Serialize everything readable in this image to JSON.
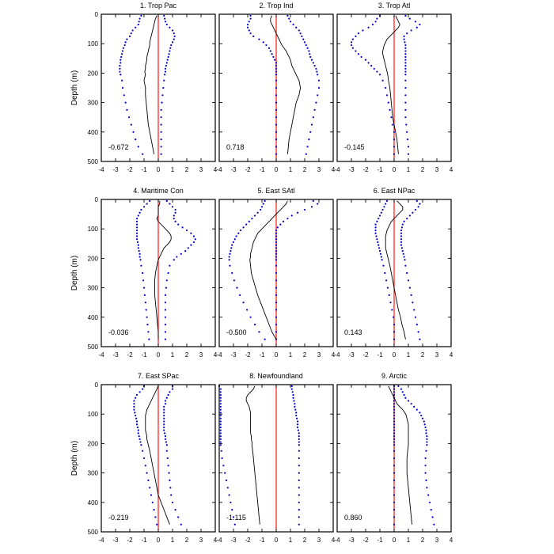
{
  "chart_data": {
    "type": "line",
    "description_axes": "shared",
    "xlim": [
      -4,
      4
    ],
    "ylim": [
      0,
      500
    ],
    "y_inverted": true,
    "ylabel": "Depth (m)",
    "x_ticks": [
      "-4",
      "-3",
      "-2",
      "-1",
      "0",
      "1",
      "2",
      "3",
      "4"
    ],
    "y_ticks": [
      "0",
      "100",
      "200",
      "300",
      "400",
      "500"
    ],
    "colors": {
      "zero_line": "#ff0000",
      "mean_line": "#000000",
      "bounds_dots": "#0000cc"
    },
    "depths": [
      5,
      15,
      25,
      35,
      45,
      55,
      65,
      75,
      85,
      95,
      105,
      115,
      125,
      135,
      145,
      155,
      165,
      175,
      185,
      195,
      205,
      225,
      250,
      275,
      300,
      325,
      350,
      375,
      400,
      425,
      450,
      475
    ],
    "panels": [
      {
        "title": "1. Trop Pac",
        "value": "-0.672",
        "mean": [
          -0.1,
          -0.2,
          -0.25,
          -0.3,
          -0.35,
          -0.4,
          -0.45,
          -0.5,
          -0.55,
          -0.6,
          -0.6,
          -0.65,
          -0.7,
          -0.75,
          -0.8,
          -0.8,
          -0.85,
          -0.9,
          -0.9,
          -0.95,
          -0.9,
          -1.0,
          -0.9,
          -0.9,
          -0.85,
          -0.8,
          -0.75,
          -0.7,
          -0.6,
          -0.5,
          -0.4,
          -0.3
        ],
        "lower": [
          -1.2,
          -1.3,
          -1.35,
          -1.4,
          -1.6,
          -1.8,
          -1.9,
          -2.0,
          -2.2,
          -2.3,
          -2.35,
          -2.45,
          -2.5,
          -2.55,
          -2.6,
          -2.65,
          -2.65,
          -2.7,
          -2.7,
          -2.7,
          -2.65,
          -2.55,
          -2.5,
          -2.4,
          -2.3,
          -2.2,
          -2.05,
          -1.9,
          -1.75,
          -1.6,
          -1.4,
          -1.1
        ],
        "upper": [
          0.4,
          0.45,
          0.5,
          0.6,
          0.8,
          1.0,
          1.1,
          1.15,
          1.1,
          1.0,
          0.9,
          0.85,
          0.8,
          0.75,
          0.7,
          0.65,
          0.6,
          0.55,
          0.5,
          0.5,
          0.45,
          0.4,
          0.35,
          0.3,
          0.25,
          0.2,
          0.2,
          0.2,
          0.2,
          0.2,
          0.2,
          0.2
        ]
      },
      {
        "title": "2. Trop Ind",
        "value": "0.718",
        "mean": [
          -0.3,
          -0.4,
          -0.4,
          -0.3,
          -0.2,
          -0.1,
          0.0,
          0.1,
          0.2,
          0.3,
          0.4,
          0.55,
          0.7,
          0.8,
          0.9,
          1.0,
          1.05,
          1.1,
          1.2,
          1.3,
          1.4,
          1.6,
          1.7,
          1.6,
          1.4,
          1.3,
          1.2,
          1.1,
          1.0,
          0.9,
          0.85,
          0.8
        ],
        "lower": [
          -1.8,
          -1.8,
          -1.9,
          -2.0,
          -2.0,
          -1.9,
          -1.8,
          -1.6,
          -1.2,
          -0.9,
          -0.7,
          -0.5,
          -0.4,
          -0.3,
          -0.2,
          -0.1,
          0.0,
          0.0,
          0.0,
          0.0,
          0.0,
          0.0,
          0.0,
          0.0,
          0.0,
          0.0,
          0.0,
          0.0,
          0.0,
          0.0,
          0.0,
          0.0
        ],
        "upper": [
          0.8,
          0.9,
          1.0,
          1.2,
          1.4,
          1.6,
          1.7,
          1.8,
          1.9,
          2.0,
          2.1,
          2.2,
          2.3,
          2.35,
          2.4,
          2.5,
          2.6,
          2.7,
          2.8,
          2.85,
          2.9,
          3.0,
          3.0,
          2.9,
          2.8,
          2.7,
          2.6,
          2.5,
          2.4,
          2.3,
          2.2,
          2.1
        ]
      },
      {
        "title": "3. Trop Atl",
        "value": "-0.145",
        "mean": [
          0.1,
          0.2,
          0.3,
          0.4,
          0.3,
          0.1,
          -0.1,
          -0.3,
          -0.5,
          -0.6,
          -0.7,
          -0.75,
          -0.8,
          -0.8,
          -0.75,
          -0.7,
          -0.65,
          -0.6,
          -0.55,
          -0.5,
          -0.45,
          -0.4,
          -0.3,
          -0.25,
          -0.2,
          -0.15,
          -0.1,
          0.0,
          0.1,
          0.2,
          0.25,
          0.3
        ],
        "lower": [
          -1.0,
          -1.2,
          -1.3,
          -1.5,
          -1.8,
          -2.2,
          -2.5,
          -2.7,
          -2.9,
          -3.0,
          -3.0,
          -2.9,
          -2.7,
          -2.5,
          -2.3,
          -2.0,
          -1.8,
          -1.6,
          -1.4,
          -1.2,
          -1.0,
          -0.8,
          -0.6,
          -0.5,
          -0.4,
          -0.3,
          -0.2,
          -0.1,
          0.0,
          0.0,
          0.0,
          0.0
        ],
        "upper": [
          0.8,
          1.1,
          1.5,
          1.8,
          1.6,
          1.2,
          0.9,
          0.7,
          0.7,
          0.75,
          0.8,
          0.8,
          0.8,
          0.8,
          0.8,
          0.8,
          0.8,
          0.8,
          0.8,
          0.8,
          0.8,
          0.8,
          0.8,
          0.8,
          0.8,
          0.8,
          0.8,
          0.85,
          0.9,
          0.95,
          1.0,
          1.0
        ]
      },
      {
        "title": "4. Maritime Con",
        "value": "-0.036",
        "mean": [
          0.1,
          0.1,
          0.0,
          0.0,
          0.0,
          0.0,
          -0.1,
          0.0,
          0.2,
          0.4,
          0.6,
          0.8,
          0.9,
          0.9,
          0.8,
          0.6,
          0.4,
          0.3,
          0.2,
          0.1,
          0.0,
          -0.1,
          -0.2,
          -0.25,
          -0.25,
          -0.25,
          -0.2,
          -0.15,
          -0.1,
          -0.05,
          0.0,
          0.0
        ],
        "lower": [
          -0.6,
          -0.8,
          -1.0,
          -1.2,
          -1.3,
          -1.4,
          -1.5,
          -1.5,
          -1.5,
          -1.5,
          -1.5,
          -1.5,
          -1.5,
          -1.5,
          -1.45,
          -1.4,
          -1.4,
          -1.35,
          -1.3,
          -1.3,
          -1.25,
          -1.2,
          -1.1,
          -1.05,
          -1.0,
          -0.95,
          -0.9,
          -0.85,
          -0.8,
          -0.75,
          -0.7,
          -0.65
        ],
        "upper": [
          0.6,
          0.8,
          1.0,
          1.2,
          1.2,
          1.1,
          1.1,
          1.2,
          1.4,
          1.7,
          2.0,
          2.3,
          2.5,
          2.6,
          2.5,
          2.3,
          2.1,
          1.9,
          1.6,
          1.3,
          1.1,
          0.8,
          0.7,
          0.6,
          0.55,
          0.5,
          0.5,
          0.5,
          0.5,
          0.5,
          0.5,
          0.5
        ]
      },
      {
        "title": "5. East SAtl",
        "value": "-0.500",
        "mean": [
          0.8,
          0.7,
          0.5,
          0.3,
          0.1,
          -0.1,
          -0.3,
          -0.5,
          -0.7,
          -0.9,
          -1.1,
          -1.3,
          -1.4,
          -1.5,
          -1.6,
          -1.65,
          -1.7,
          -1.75,
          -1.8,
          -1.8,
          -1.85,
          -1.8,
          -1.75,
          -1.6,
          -1.45,
          -1.3,
          -1.1,
          -0.9,
          -0.7,
          -0.5,
          -0.3,
          0.0
        ],
        "lower": [
          -0.8,
          -0.9,
          -1.0,
          -1.1,
          -1.3,
          -1.5,
          -1.7,
          -1.9,
          -2.1,
          -2.3,
          -2.5,
          -2.65,
          -2.8,
          -2.9,
          -3.0,
          -3.1,
          -3.15,
          -3.2,
          -3.25,
          -3.3,
          -3.3,
          -3.25,
          -3.1,
          -2.95,
          -2.75,
          -2.55,
          -2.3,
          -2.05,
          -1.8,
          -1.5,
          -1.2,
          -0.8
        ],
        "upper": [
          2.6,
          2.9,
          2.5,
          2.0,
          1.5,
          1.1,
          0.8,
          0.5,
          0.3,
          0.1,
          0.0,
          0.0,
          0.0,
          0.0,
          0.0,
          0.0,
          0.0,
          0.0,
          0.0,
          0.0,
          0.0,
          0.0,
          0.0,
          0.0,
          0.0,
          0.0,
          0.0,
          0.0,
          0.0,
          0.0,
          0.0,
          0.0
        ]
      },
      {
        "title": "6. East NPac",
        "value": "0.143",
        "mean": [
          0.2,
          0.4,
          0.6,
          0.6,
          0.4,
          0.2,
          0.0,
          -0.2,
          -0.3,
          -0.4,
          -0.5,
          -0.55,
          -0.6,
          -0.6,
          -0.6,
          -0.6,
          -0.6,
          -0.55,
          -0.5,
          -0.45,
          -0.4,
          -0.3,
          -0.2,
          -0.1,
          0.0,
          0.1,
          0.2,
          0.3,
          0.45,
          0.55,
          0.7,
          0.8
        ],
        "lower": [
          -0.5,
          -0.6,
          -0.7,
          -0.8,
          -0.9,
          -1.0,
          -1.1,
          -1.2,
          -1.3,
          -1.3,
          -1.3,
          -1.3,
          -1.25,
          -1.2,
          -1.15,
          -1.1,
          -1.05,
          -1.0,
          -0.95,
          -0.9,
          -0.85,
          -0.75,
          -0.65,
          -0.55,
          -0.45,
          -0.35,
          -0.25,
          -0.15,
          -0.05,
          0.0,
          0.0,
          0.0
        ],
        "upper": [
          1.6,
          1.8,
          1.7,
          1.5,
          1.3,
          1.1,
          0.9,
          0.7,
          0.6,
          0.55,
          0.5,
          0.5,
          0.5,
          0.5,
          0.5,
          0.5,
          0.55,
          0.6,
          0.65,
          0.7,
          0.75,
          0.8,
          0.9,
          1.0,
          1.1,
          1.2,
          1.3,
          1.4,
          1.5,
          1.6,
          1.7,
          1.8
        ]
      },
      {
        "title": "7. East SPac",
        "value": "-0.219",
        "mean": [
          0.0,
          -0.1,
          -0.2,
          -0.3,
          -0.4,
          -0.5,
          -0.6,
          -0.7,
          -0.8,
          -0.85,
          -0.9,
          -0.9,
          -0.9,
          -0.9,
          -0.9,
          -0.9,
          -0.85,
          -0.8,
          -0.8,
          -0.75,
          -0.7,
          -0.6,
          -0.5,
          -0.4,
          -0.3,
          -0.2,
          -0.1,
          0.0,
          0.2,
          0.4,
          0.6,
          0.8
        ],
        "lower": [
          -1.0,
          -1.1,
          -1.3,
          -1.5,
          -1.6,
          -1.7,
          -1.7,
          -1.7,
          -1.7,
          -1.65,
          -1.6,
          -1.55,
          -1.5,
          -1.5,
          -1.45,
          -1.4,
          -1.4,
          -1.35,
          -1.3,
          -1.25,
          -1.2,
          -1.1,
          -1.0,
          -0.9,
          -0.8,
          -0.7,
          -0.6,
          -0.5,
          -0.4,
          -0.3,
          -0.2,
          -0.1
        ],
        "upper": [
          1.0,
          1.0,
          0.8,
          0.7,
          0.6,
          0.5,
          0.5,
          0.4,
          0.4,
          0.4,
          0.4,
          0.4,
          0.4,
          0.4,
          0.4,
          0.4,
          0.45,
          0.5,
          0.5,
          0.55,
          0.6,
          0.6,
          0.65,
          0.7,
          0.75,
          0.8,
          0.85,
          0.9,
          1.0,
          1.2,
          1.4,
          1.6
        ]
      },
      {
        "title": "8. Newfoundland",
        "value": "-1.115",
        "mean": [
          -1.5,
          -1.6,
          -1.8,
          -2.0,
          -2.1,
          -2.1,
          -2.0,
          -1.9,
          -1.85,
          -1.8,
          -1.8,
          -1.8,
          -1.8,
          -1.8,
          -1.8,
          -1.8,
          -1.8,
          -1.75,
          -1.75,
          -1.7,
          -1.7,
          -1.65,
          -1.6,
          -1.55,
          -1.5,
          -1.45,
          -1.4,
          -1.35,
          -1.3,
          -1.25,
          -1.2,
          -1.15
        ],
        "lower": [
          -4.0,
          -3.9,
          -3.9,
          -3.9,
          -3.9,
          -3.9,
          -3.9,
          -3.9,
          -3.9,
          -3.9,
          -3.9,
          -3.9,
          -3.9,
          -3.9,
          -3.9,
          -3.9,
          -3.9,
          -3.9,
          -3.9,
          -3.9,
          -3.9,
          -3.85,
          -3.8,
          -3.7,
          -3.6,
          -3.5,
          -3.4,
          -3.3,
          -3.2,
          -3.1,
          -3.0,
          -2.9
        ],
        "upper": [
          1.1,
          1.1,
          1.15,
          1.2,
          1.2,
          1.25,
          1.3,
          1.3,
          1.35,
          1.4,
          1.4,
          1.45,
          1.5,
          1.5,
          1.5,
          1.55,
          1.6,
          1.6,
          1.6,
          1.6,
          1.6,
          1.6,
          1.6,
          1.6,
          1.6,
          1.6,
          1.6,
          1.6,
          1.6,
          1.6,
          1.6,
          1.6
        ]
      },
      {
        "title": "9. Arctic",
        "value": "0.860",
        "mean": [
          -0.4,
          -0.3,
          -0.2,
          -0.1,
          0.0,
          0.1,
          0.2,
          0.4,
          0.6,
          0.75,
          0.85,
          0.9,
          0.95,
          1.0,
          1.0,
          1.0,
          1.0,
          1.0,
          1.0,
          1.0,
          1.0,
          0.95,
          0.9,
          0.9,
          0.9,
          0.95,
          1.0,
          1.05,
          1.1,
          1.15,
          1.2,
          1.25
        ],
        "lower": [
          0.0,
          0.0,
          0.0,
          0.0,
          0.0,
          0.0,
          0.0,
          0.0,
          0.0,
          0.0,
          0.0,
          0.0,
          0.0,
          0.0,
          0.0,
          0.0,
          0.0,
          0.0,
          0.0,
          0.0,
          0.0,
          0.0,
          0.0,
          0.0,
          0.0,
          0.0,
          0.0,
          0.0,
          0.0,
          0.0,
          0.0,
          0.0
        ],
        "upper": [
          0.3,
          0.5,
          0.6,
          0.7,
          0.8,
          1.0,
          1.2,
          1.4,
          1.6,
          1.8,
          1.9,
          2.0,
          2.1,
          2.15,
          2.2,
          2.25,
          2.25,
          2.3,
          2.3,
          2.3,
          2.3,
          2.25,
          2.2,
          2.2,
          2.2,
          2.25,
          2.3,
          2.4,
          2.5,
          2.6,
          2.7,
          2.8
        ]
      }
    ]
  }
}
